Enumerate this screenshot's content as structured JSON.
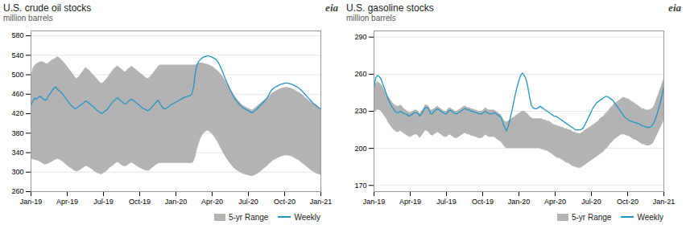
{
  "chart_data": [
    {
      "type": "line",
      "title": "U.S. crude oil stocks",
      "subtitle": "million barrels",
      "annotation": "eia",
      "xlim": [
        0,
        164
      ],
      "xticks": [
        {
          "value": 0,
          "label": "Jan-19"
        },
        {
          "value": 20.5,
          "label": "Apr-19"
        },
        {
          "value": 41,
          "label": "Jul-19"
        },
        {
          "value": 61.5,
          "label": "Oct-19"
        },
        {
          "value": 82,
          "label": "Jan-20"
        },
        {
          "value": 102.5,
          "label": "Apr-20"
        },
        {
          "value": 123,
          "label": "Jul-20"
        },
        {
          "value": 143.5,
          "label": "Oct-20"
        },
        {
          "value": 164,
          "label": "Jan-21"
        }
      ],
      "ylim": [
        260,
        590
      ],
      "yticks": [
        260,
        300,
        340,
        380,
        420,
        460,
        500,
        540,
        580
      ],
      "grid": true,
      "legend": "lower right",
      "series": [
        {
          "name": "5-yr Range",
          "type": "band",
          "color": "#b3b3b3",
          "low": [
            327,
            326,
            325,
            324,
            323,
            321,
            319,
            317,
            315,
            316,
            317,
            319,
            321,
            323,
            325,
            327,
            326,
            324,
            321,
            318,
            315,
            312,
            309,
            307,
            304,
            302,
            301,
            302,
            304,
            307,
            309,
            312,
            311,
            309,
            307,
            304,
            301,
            299,
            297,
            296,
            295,
            297,
            299,
            302,
            306,
            309,
            312,
            315,
            318,
            320,
            318,
            315,
            313,
            311,
            312,
            315,
            317,
            319,
            317,
            315,
            312,
            310,
            308,
            306,
            304,
            303,
            302,
            303,
            306,
            309,
            312,
            315,
            317,
            318,
            318,
            318,
            318,
            318,
            318,
            318,
            318,
            318,
            318,
            318,
            318,
            318,
            318,
            318,
            318,
            318,
            318,
            318,
            320,
            330,
            345,
            358,
            368,
            375,
            380,
            383,
            385,
            383,
            380,
            376,
            371,
            365,
            359,
            352,
            345,
            338,
            332,
            326,
            321,
            316,
            312,
            308,
            305,
            302,
            300,
            298,
            296,
            295,
            294,
            293,
            292,
            291,
            292,
            294,
            296,
            298,
            301,
            304,
            307,
            310,
            313,
            317,
            320,
            323,
            325,
            327,
            329,
            331,
            332,
            333,
            334,
            334,
            333,
            332,
            331,
            329,
            327,
            325,
            323,
            320,
            317,
            314,
            311,
            308,
            305,
            302,
            300,
            298,
            296,
            295,
            294
          ],
          "high": [
            490,
            512,
            518,
            522,
            524,
            526,
            527,
            526,
            524,
            522,
            524,
            527,
            530,
            532,
            534,
            537,
            535,
            532,
            528,
            524,
            520,
            515,
            510,
            505,
            500,
            495,
            492,
            495,
            500,
            505,
            510,
            515,
            512,
            509,
            505,
            501,
            497,
            493,
            489,
            485,
            482,
            484,
            488,
            492,
            497,
            502,
            507,
            512,
            515,
            518,
            515,
            512,
            509,
            506,
            507,
            512,
            514,
            518,
            515,
            512,
            509,
            506,
            503,
            500,
            497,
            494,
            492,
            494,
            498,
            502,
            507,
            512,
            517,
            520,
            520,
            520,
            520,
            520,
            520,
            520,
            520,
            520,
            520,
            520,
            520,
            520,
            520,
            520,
            520,
            520,
            520,
            520,
            520,
            520,
            522,
            524,
            524,
            524,
            523,
            522,
            521,
            520,
            518,
            516,
            513,
            510,
            507,
            503,
            499,
            494,
            488,
            482,
            476,
            470,
            464,
            458,
            453,
            448,
            444,
            440,
            437,
            435,
            433,
            431,
            429,
            427,
            429,
            432,
            435,
            438,
            441,
            444,
            447,
            450,
            453,
            456,
            460,
            463,
            465,
            467,
            469,
            471,
            472,
            473,
            474,
            474,
            473,
            472,
            471,
            469,
            467,
            465,
            463,
            460,
            457,
            454,
            451,
            448,
            445,
            442,
            439,
            437,
            434,
            432,
            430
          ]
        },
        {
          "name": "Weekly",
          "type": "line",
          "color": "#2196c8",
          "values": [
            438,
            445,
            452,
            450,
            453,
            456,
            453,
            450,
            448,
            450,
            458,
            462,
            468,
            472,
            475,
            470,
            467,
            464,
            460,
            455,
            450,
            445,
            440,
            436,
            433,
            430,
            432,
            435,
            438,
            440,
            443,
            446,
            444,
            441,
            438,
            435,
            432,
            428,
            425,
            423,
            420,
            423,
            426,
            428,
            433,
            438,
            443,
            447,
            450,
            453,
            449,
            446,
            443,
            440,
            441,
            445,
            448,
            450,
            447,
            444,
            441,
            438,
            435,
            432,
            430,
            428,
            426,
            428,
            432,
            436,
            440,
            444,
            448,
            440,
            435,
            430,
            430,
            432,
            435,
            438,
            440,
            442,
            444,
            446,
            448,
            450,
            452,
            454,
            455,
            456,
            457,
            460,
            475,
            505,
            520,
            528,
            532,
            535,
            537,
            538,
            539,
            538,
            537,
            535,
            533,
            530,
            525,
            518,
            510,
            500,
            492,
            483,
            475,
            467,
            460,
            453,
            448,
            443,
            439,
            435,
            432,
            430,
            428,
            426,
            424,
            422,
            424,
            427,
            430,
            434,
            438,
            442,
            446,
            450,
            455,
            462,
            468,
            472,
            474,
            476,
            478,
            480,
            481,
            482,
            483,
            483,
            482,
            481,
            480,
            478,
            476,
            474,
            471,
            468,
            464,
            460,
            456,
            452,
            448,
            444,
            440,
            438,
            435,
            432,
            430
          ]
        }
      ]
    },
    {
      "type": "line",
      "title": "U.S. gasoline stocks",
      "subtitle": "million barrels",
      "annotation": "eia",
      "xlim": [
        0,
        164
      ],
      "xticks": [
        {
          "value": 0,
          "label": "Jan-19"
        },
        {
          "value": 20.5,
          "label": "Apr-19"
        },
        {
          "value": 41,
          "label": "Jul-19"
        },
        {
          "value": 61.5,
          "label": "Oct-19"
        },
        {
          "value": 82,
          "label": "Jan-20"
        },
        {
          "value": 102.5,
          "label": "Apr-20"
        },
        {
          "value": 123,
          "label": "Jul-20"
        },
        {
          "value": 143.5,
          "label": "Oct-20"
        },
        {
          "value": 164,
          "label": "Jan-21"
        }
      ],
      "ylim": [
        165,
        295
      ],
      "yticks": [
        170,
        200,
        230,
        260,
        290
      ],
      "grid": true,
      "legend": "lower right",
      "series": [
        {
          "name": "5-yr Range",
          "type": "band",
          "color": "#b3b3b3",
          "low": [
            228,
            230,
            231,
            231,
            230,
            228,
            226,
            224,
            221,
            219,
            217,
            215,
            214,
            213,
            213,
            214,
            213,
            212,
            211,
            210,
            209,
            209,
            210,
            211,
            211,
            210,
            208,
            210,
            212,
            214,
            214,
            213,
            211,
            210,
            211,
            212,
            213,
            212,
            211,
            210,
            209,
            209,
            210,
            211,
            210,
            209,
            208,
            208,
            209,
            210,
            211,
            212,
            212,
            211,
            211,
            210,
            210,
            209,
            209,
            208,
            208,
            208,
            209,
            211,
            210,
            209,
            209,
            209,
            209,
            208,
            207,
            206,
            205,
            203,
            201,
            200,
            200,
            200,
            200,
            200,
            200,
            200,
            200,
            200,
            200,
            200,
            200,
            200,
            200,
            200,
            200,
            200,
            200,
            200,
            200,
            199,
            199,
            198,
            198,
            197,
            196,
            195,
            194,
            193,
            192,
            192,
            191,
            190,
            189,
            188,
            188,
            187,
            186,
            185,
            185,
            184,
            184,
            184,
            185,
            186,
            187,
            188,
            189,
            190,
            191,
            192,
            193,
            194,
            195,
            196,
            197,
            199,
            200,
            202,
            204,
            205,
            207,
            208,
            209,
            210,
            211,
            211,
            211,
            210,
            210,
            209,
            208,
            207,
            207,
            206,
            205,
            204,
            203,
            203,
            202,
            202,
            202,
            203,
            204,
            207,
            210,
            213,
            216,
            219,
            222
          ],
          "high": [
            249,
            252,
            254,
            253,
            252,
            250,
            247,
            244,
            242,
            240,
            238,
            236,
            235,
            234,
            234,
            235,
            234,
            232,
            231,
            230,
            229,
            229,
            230,
            231,
            231,
            230,
            228,
            230,
            232,
            235,
            235,
            234,
            231,
            231,
            232,
            233,
            234,
            233,
            232,
            231,
            230,
            230,
            232,
            233,
            232,
            231,
            230,
            230,
            231,
            232,
            233,
            234,
            234,
            233,
            233,
            232,
            232,
            231,
            231,
            230,
            230,
            230,
            231,
            233,
            232,
            231,
            231,
            231,
            231,
            230,
            229,
            228,
            227,
            224,
            222,
            221,
            222,
            223,
            224,
            225,
            226,
            227,
            228,
            229,
            230,
            230,
            229,
            228,
            226,
            225,
            224,
            224,
            224,
            224,
            224,
            224,
            223,
            223,
            222,
            222,
            221,
            220,
            219,
            219,
            218,
            218,
            217,
            217,
            216,
            216,
            215,
            215,
            214,
            213,
            213,
            212,
            212,
            212,
            213,
            214,
            215,
            216,
            217,
            218,
            219,
            220,
            221,
            222,
            224,
            225,
            226,
            228,
            229,
            231,
            233,
            234,
            236,
            237,
            238,
            239,
            240,
            241,
            241,
            240,
            240,
            239,
            238,
            237,
            236,
            235,
            234,
            233,
            232,
            232,
            231,
            231,
            231,
            232,
            233,
            236,
            240,
            244,
            248,
            252,
            256
          ]
        },
        {
          "name": "Weekly",
          "type": "line",
          "color": "#2196c8",
          "values": [
            249,
            257,
            259,
            258,
            256,
            252,
            248,
            244,
            240,
            237,
            234,
            232,
            230,
            229,
            229,
            230,
            229,
            228,
            228,
            227,
            226,
            227,
            228,
            229,
            229,
            228,
            226,
            228,
            231,
            233,
            233,
            232,
            228,
            228,
            230,
            231,
            232,
            231,
            230,
            229,
            228,
            228,
            230,
            231,
            230,
            229,
            228,
            228,
            229,
            230,
            231,
            232,
            232,
            231,
            231,
            230,
            230,
            229,
            229,
            228,
            228,
            228,
            229,
            230,
            229,
            228,
            228,
            228,
            229,
            228,
            227,
            226,
            225,
            220,
            217,
            214,
            218,
            224,
            230,
            237,
            244,
            250,
            255,
            259,
            261,
            259,
            256,
            250,
            242,
            235,
            233,
            232,
            232,
            233,
            234,
            233,
            232,
            231,
            230,
            229,
            228,
            227,
            226,
            226,
            225,
            224,
            223,
            222,
            221,
            220,
            219,
            218,
            217,
            216,
            215,
            215,
            215,
            215,
            216,
            218,
            221,
            224,
            227,
            230,
            233,
            235,
            237,
            238,
            239,
            240,
            241,
            242,
            242,
            241,
            240,
            239,
            237,
            235,
            233,
            231,
            229,
            227,
            225,
            224,
            223,
            222,
            222,
            221,
            221,
            220,
            220,
            219,
            218,
            218,
            217,
            217,
            217,
            218,
            220,
            223,
            227,
            232,
            237,
            243,
            250
          ]
        }
      ]
    }
  ]
}
